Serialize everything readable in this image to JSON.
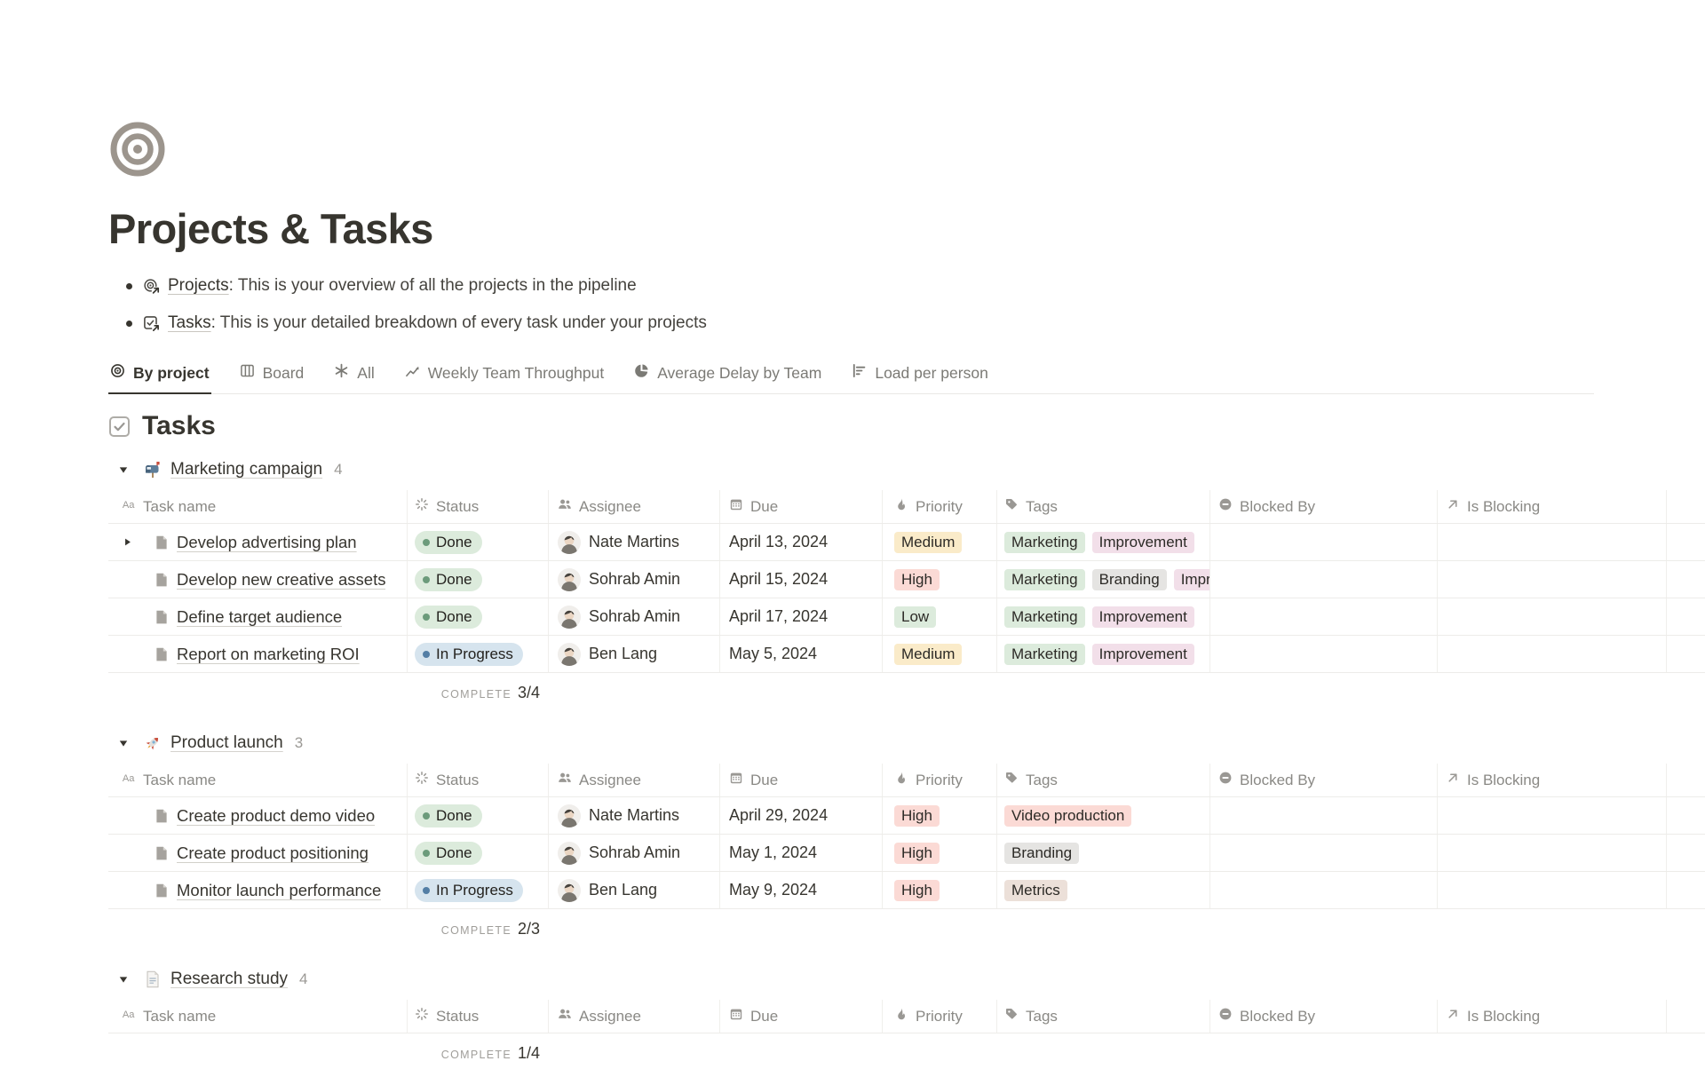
{
  "page": {
    "title": "Projects & Tasks"
  },
  "intro": [
    {
      "icon": "target-link-icon",
      "link": "Projects",
      "text": ": This is your overview of all the projects in the pipeline"
    },
    {
      "icon": "checkbox-link-icon",
      "link": "Tasks",
      "text": ": This is your detailed breakdown of every task under your projects"
    }
  ],
  "tabs": [
    {
      "label": "By project",
      "icon": "target-icon",
      "active": true
    },
    {
      "label": "Board",
      "icon": "board-icon",
      "active": false
    },
    {
      "label": "All",
      "icon": "asterisk-icon",
      "active": false
    },
    {
      "label": "Weekly Team Throughput",
      "icon": "line-chart-icon",
      "active": false
    },
    {
      "label": "Average Delay by Team",
      "icon": "pie-chart-icon",
      "active": false
    },
    {
      "label": "Load per person",
      "icon": "bar-chart-icon",
      "active": false
    }
  ],
  "section": {
    "title": "Tasks"
  },
  "columns": [
    {
      "label": "Task name",
      "icon": "aa-icon"
    },
    {
      "label": "Status",
      "icon": "status-icon"
    },
    {
      "label": "Assignee",
      "icon": "assignee-icon"
    },
    {
      "label": "Due",
      "icon": "calendar-icon"
    },
    {
      "label": "Priority",
      "icon": "priority-icon"
    },
    {
      "label": "Tags",
      "icon": "tag-icon"
    },
    {
      "label": "Blocked By",
      "icon": "blocked-icon"
    },
    {
      "label": "Is Blocking",
      "icon": "arrow-up-right-icon"
    }
  ],
  "colors": {
    "status": {
      "Done": {
        "bg": "#DCEBDC",
        "dot": "#6C9B7B"
      },
      "In Progress": {
        "bg": "#D6E4EE",
        "dot": "#537EA5"
      }
    },
    "priority": {
      "Medium": "#FAEBC9",
      "High": "#FBDAD5",
      "Low": "#DCEBDC"
    },
    "tag": {
      "green": "#DCEBDC",
      "pink": "#F2DFE9",
      "gray": "#E5E4E2",
      "red": "#FBDAD5",
      "brown": "#ECE0D9"
    }
  },
  "groups": [
    {
      "name": "Marketing campaign",
      "count": "4",
      "emoji": "mailbox-emoji",
      "rows": [
        {
          "toggle": true,
          "task": "Develop advertising plan",
          "status": "Done",
          "assignee": "Nate Martins",
          "due": "April 13, 2024",
          "priority": "Medium",
          "tags": [
            {
              "label": "Marketing",
              "color": "green"
            },
            {
              "label": "Improvement",
              "color": "pink"
            }
          ]
        },
        {
          "toggle": false,
          "task": "Develop new creative assets",
          "status": "Done",
          "assignee": "Sohrab Amin",
          "due": "April 15, 2024",
          "priority": "High",
          "tags": [
            {
              "label": "Marketing",
              "color": "green"
            },
            {
              "label": "Branding",
              "color": "gray"
            },
            {
              "label": "Improvement",
              "color": "pink"
            }
          ]
        },
        {
          "toggle": false,
          "task": "Define target audience",
          "status": "Done",
          "assignee": "Sohrab Amin",
          "due": "April 17, 2024",
          "priority": "Low",
          "tags": [
            {
              "label": "Marketing",
              "color": "green"
            },
            {
              "label": "Improvement",
              "color": "pink"
            }
          ]
        },
        {
          "toggle": false,
          "task": "Report on marketing ROI",
          "status": "In Progress",
          "assignee": "Ben Lang",
          "due": "May 5, 2024",
          "priority": "Medium",
          "tags": [
            {
              "label": "Marketing",
              "color": "green"
            },
            {
              "label": "Improvement",
              "color": "pink"
            }
          ]
        }
      ],
      "complete": {
        "label": "COMPLETE",
        "value": "3/4"
      }
    },
    {
      "name": "Product launch",
      "count": "3",
      "emoji": "rocket-emoji",
      "rows": [
        {
          "toggle": false,
          "task": "Create product demo video",
          "status": "Done",
          "assignee": "Nate Martins",
          "due": "April 29, 2024",
          "priority": "High",
          "tags": [
            {
              "label": "Video production",
              "color": "red"
            }
          ]
        },
        {
          "toggle": false,
          "task": "Create product positioning",
          "status": "Done",
          "assignee": "Sohrab Amin",
          "due": "May 1, 2024",
          "priority": "High",
          "tags": [
            {
              "label": "Branding",
              "color": "gray"
            }
          ]
        },
        {
          "toggle": false,
          "task": "Monitor launch performance",
          "status": "In Progress",
          "assignee": "Ben Lang",
          "due": "May 9, 2024",
          "priority": "High",
          "tags": [
            {
              "label": "Metrics",
              "color": "brown"
            }
          ]
        }
      ],
      "complete": {
        "label": "COMPLETE",
        "value": "2/3"
      }
    },
    {
      "name": "Research study",
      "count": "4",
      "emoji": "page-emoji",
      "rows": [],
      "complete": {
        "label": "COMPLETE",
        "value": "1/4"
      }
    }
  ]
}
